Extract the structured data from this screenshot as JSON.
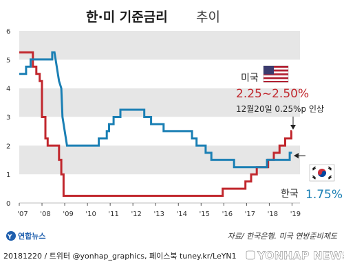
{
  "title": {
    "main": "한·미 기준금리",
    "sub": "추이"
  },
  "source": "자료/ 한국은행. 미국 연방준비제도",
  "footer": "20181220 / 트위터 @yonhap_graphics, 페이스북 tuney.kr/LeYN1",
  "watermark": "YONHAP NEWS",
  "logo": "연합뉴스",
  "annotations": {
    "us_label": "미국",
    "us_rate": "2.25~2.50%",
    "us_note": "12월20일 0.25%p 인상",
    "kr_label": "한국",
    "kr_rate": "1.75%"
  },
  "colors": {
    "us": "#c1272d",
    "kr": "#1a7fb4",
    "band": "#e6e6e6"
  },
  "chart_data": {
    "type": "line",
    "title": "한·미 기준금리 추이",
    "xlabel": "",
    "ylabel": "",
    "ylim": [
      0,
      6
    ],
    "xlim": [
      2007.0,
      2019.35
    ],
    "x_ticks": [
      "'07",
      "'08",
      "'09",
      "'10",
      "'11",
      "'12",
      "'13",
      "'14",
      "'15",
      "'16",
      "'17",
      "'18",
      "'19"
    ],
    "y_ticks": [
      "0",
      "1",
      "2",
      "3",
      "4",
      "5",
      "6"
    ],
    "grid": "alternating horizontal bands",
    "series": [
      {
        "name": "미국",
        "color": "#c1272d",
        "points": [
          [
            2007.0,
            5.25
          ],
          [
            2007.6,
            5.25
          ],
          [
            2007.6,
            4.75
          ],
          [
            2007.75,
            4.75
          ],
          [
            2007.75,
            4.5
          ],
          [
            2007.9,
            4.5
          ],
          [
            2007.9,
            4.25
          ],
          [
            2008.0,
            4.25
          ],
          [
            2008.0,
            3.0
          ],
          [
            2008.15,
            3.0
          ],
          [
            2008.15,
            2.25
          ],
          [
            2008.25,
            2.25
          ],
          [
            2008.25,
            2.0
          ],
          [
            2008.75,
            2.0
          ],
          [
            2008.75,
            1.5
          ],
          [
            2008.85,
            1.5
          ],
          [
            2008.85,
            1.0
          ],
          [
            2008.95,
            1.0
          ],
          [
            2008.95,
            0.25
          ],
          [
            2015.95,
            0.25
          ],
          [
            2015.95,
            0.5
          ],
          [
            2016.95,
            0.5
          ],
          [
            2016.95,
            0.75
          ],
          [
            2017.2,
            0.75
          ],
          [
            2017.2,
            1.0
          ],
          [
            2017.45,
            1.0
          ],
          [
            2017.45,
            1.25
          ],
          [
            2017.95,
            1.25
          ],
          [
            2017.95,
            1.5
          ],
          [
            2018.2,
            1.5
          ],
          [
            2018.2,
            1.75
          ],
          [
            2018.45,
            1.75
          ],
          [
            2018.45,
            2.0
          ],
          [
            2018.7,
            2.0
          ],
          [
            2018.7,
            2.25
          ],
          [
            2018.97,
            2.25
          ],
          [
            2018.97,
            2.5
          ],
          [
            2019.0,
            2.5
          ]
        ]
      },
      {
        "name": "한국",
        "color": "#1a7fb4",
        "points": [
          [
            2007.0,
            4.5
          ],
          [
            2007.3,
            4.5
          ],
          [
            2007.3,
            4.75
          ],
          [
            2007.5,
            4.75
          ],
          [
            2007.5,
            5.0
          ],
          [
            2008.45,
            5.0
          ],
          [
            2008.45,
            5.25
          ],
          [
            2008.55,
            5.25
          ],
          [
            2008.75,
            4.25
          ],
          [
            2008.85,
            4.0
          ],
          [
            2008.9,
            3.0
          ],
          [
            2009.0,
            2.5
          ],
          [
            2009.1,
            2.0
          ],
          [
            2010.5,
            2.0
          ],
          [
            2010.5,
            2.25
          ],
          [
            2010.85,
            2.25
          ],
          [
            2010.85,
            2.5
          ],
          [
            2010.95,
            2.5
          ],
          [
            2010.95,
            2.75
          ],
          [
            2011.15,
            2.75
          ],
          [
            2011.15,
            3.0
          ],
          [
            2011.45,
            3.0
          ],
          [
            2011.45,
            3.25
          ],
          [
            2012.5,
            3.25
          ],
          [
            2012.5,
            3.0
          ],
          [
            2012.8,
            3.0
          ],
          [
            2012.8,
            2.75
          ],
          [
            2013.35,
            2.75
          ],
          [
            2013.35,
            2.5
          ],
          [
            2014.6,
            2.5
          ],
          [
            2014.6,
            2.25
          ],
          [
            2014.8,
            2.25
          ],
          [
            2014.8,
            2.0
          ],
          [
            2015.2,
            2.0
          ],
          [
            2015.2,
            1.75
          ],
          [
            2015.45,
            1.75
          ],
          [
            2015.45,
            1.5
          ],
          [
            2016.45,
            1.5
          ],
          [
            2016.45,
            1.25
          ],
          [
            2017.9,
            1.25
          ],
          [
            2017.9,
            1.5
          ],
          [
            2018.9,
            1.5
          ],
          [
            2018.9,
            1.75
          ],
          [
            2019.0,
            1.75
          ]
        ]
      }
    ]
  }
}
